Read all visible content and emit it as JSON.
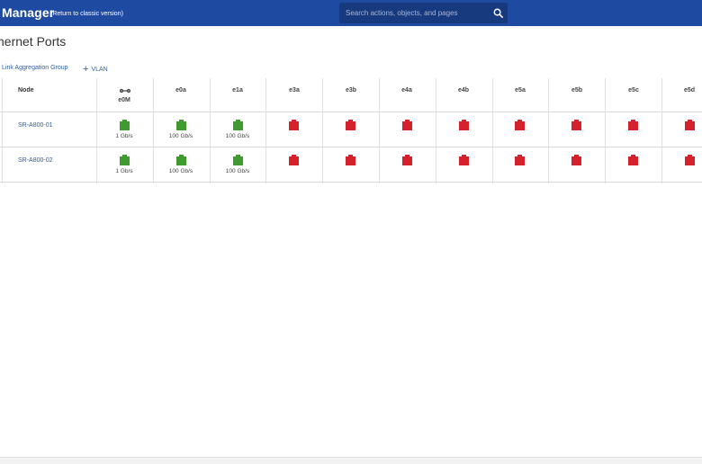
{
  "header": {
    "app_title": "Manager",
    "classic_link": "(Return to classic version)",
    "search_placeholder": "Search actions, objects, and pages"
  },
  "page": {
    "title": "hernet Ports",
    "actions": {
      "lag_label": "Link Aggregation Group",
      "vlan_label": "VLAN"
    }
  },
  "table": {
    "node_header": "Node",
    "columns": [
      "e0M",
      "e0a",
      "e1a",
      "e3a",
      "e3b",
      "e4a",
      "e4b",
      "e5a",
      "e5b",
      "e5c",
      "e5d"
    ],
    "rows": [
      {
        "node": "SR-A800-01",
        "ports": [
          {
            "status": "up",
            "speed": "1 Gb/s"
          },
          {
            "status": "up",
            "speed": "100 Gb/s"
          },
          {
            "status": "up",
            "speed": "100 Gb/s"
          },
          {
            "status": "down",
            "speed": ""
          },
          {
            "status": "down",
            "speed": ""
          },
          {
            "status": "down",
            "speed": ""
          },
          {
            "status": "down",
            "speed": ""
          },
          {
            "status": "down",
            "speed": ""
          },
          {
            "status": "down",
            "speed": ""
          },
          {
            "status": "down",
            "speed": ""
          },
          {
            "status": "down",
            "speed": ""
          }
        ]
      },
      {
        "node": "SR-A800-02",
        "ports": [
          {
            "status": "up",
            "speed": "1 Gb/s"
          },
          {
            "status": "up",
            "speed": "100 Gb/s"
          },
          {
            "status": "up",
            "speed": "100 Gb/s"
          },
          {
            "status": "down",
            "speed": ""
          },
          {
            "status": "down",
            "speed": ""
          },
          {
            "status": "down",
            "speed": ""
          },
          {
            "status": "down",
            "speed": ""
          },
          {
            "status": "down",
            "speed": ""
          },
          {
            "status": "down",
            "speed": ""
          },
          {
            "status": "down",
            "speed": ""
          },
          {
            "status": "down",
            "speed": ""
          }
        ]
      }
    ]
  },
  "colors": {
    "header_bg": "#1f4aa1",
    "port_up": "#3f9a2f",
    "port_down": "#d4212b",
    "link": "#2c5ea8"
  },
  "icons": {
    "search": "search-icon",
    "management_port": "wrench-icon",
    "add": "plus-icon"
  }
}
